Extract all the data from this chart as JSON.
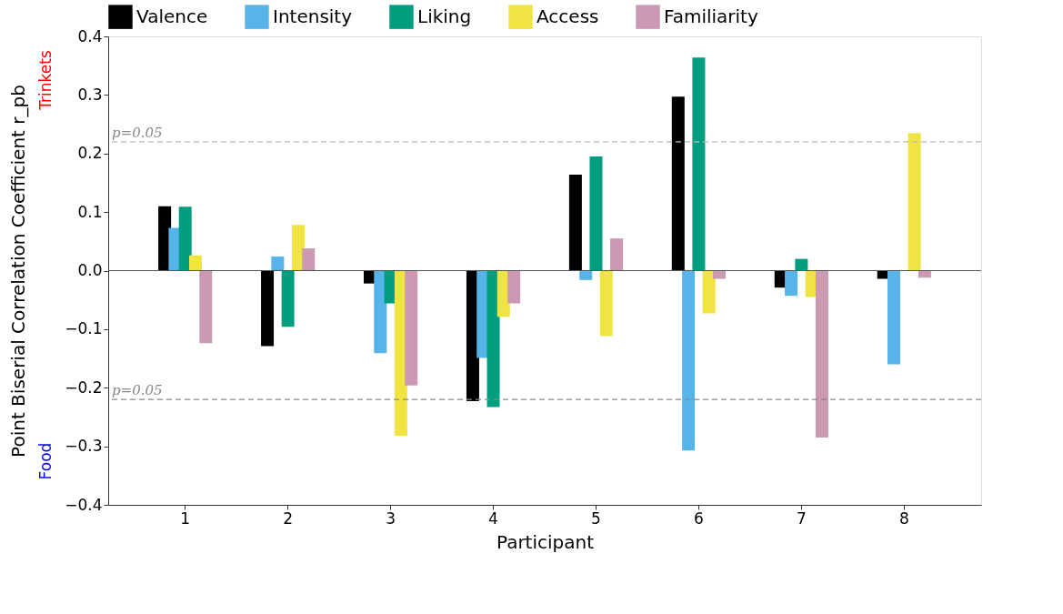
{
  "chart_data": {
    "type": "bar",
    "xlabel": "Participant",
    "ylabel": "Point Biserial Correlation Coefficient   r_pb",
    "categories": [
      "1",
      "2",
      "3",
      "4",
      "5",
      "6",
      "7",
      "8"
    ],
    "series": [
      {
        "name": "Valence",
        "color": "#000000",
        "values": [
          0.11,
          -0.129,
          -0.022,
          -0.223,
          0.164,
          0.297,
          -0.029,
          -0.014
        ]
      },
      {
        "name": "Intensity",
        "color": "#56b4e9",
        "values": [
          0.073,
          0.024,
          -0.141,
          -0.149,
          -0.016,
          -0.307,
          -0.043,
          -0.16
        ]
      },
      {
        "name": "Liking",
        "color": "#009e7e",
        "values": [
          0.109,
          -0.096,
          -0.056,
          -0.233,
          0.195,
          0.364,
          0.02,
          null
        ]
      },
      {
        "name": "Access",
        "color": "#f0e442",
        "values": [
          0.026,
          0.078,
          -0.282,
          -0.079,
          -0.112,
          -0.073,
          -0.045,
          0.235
        ]
      },
      {
        "name": "Familiarity",
        "color": "#cc99b2",
        "values": [
          -0.124,
          0.038,
          -0.196,
          -0.056,
          0.055,
          -0.014,
          -0.285,
          -0.012
        ]
      }
    ],
    "ylim": [
      -0.4,
      0.4
    ],
    "yticks": [
      -0.4,
      -0.3,
      -0.2,
      -0.1,
      {
        "value": 0,
        "label": "0.0"
      },
      0.1,
      0.2,
      0.3,
      0.4
    ],
    "ref_lines": [
      {
        "axis": "y",
        "value": 0.22,
        "color": "#bbbbbb",
        "line_style": "dashed"
      },
      {
        "axis": "y",
        "value": -0.22,
        "color": "#888888",
        "line_style": "dashed"
      },
      {
        "axis": "y",
        "value": 0,
        "color": "#555555",
        "line_style": "solid"
      }
    ],
    "annotations": [
      "Trinkets",
      "Food",
      {
        "text": "p=0.05",
        "y": 0.22
      },
      {
        "text": "p=0.05",
        "y": -0.22
      }
    ],
    "legend": "top",
    "grid": false
  }
}
